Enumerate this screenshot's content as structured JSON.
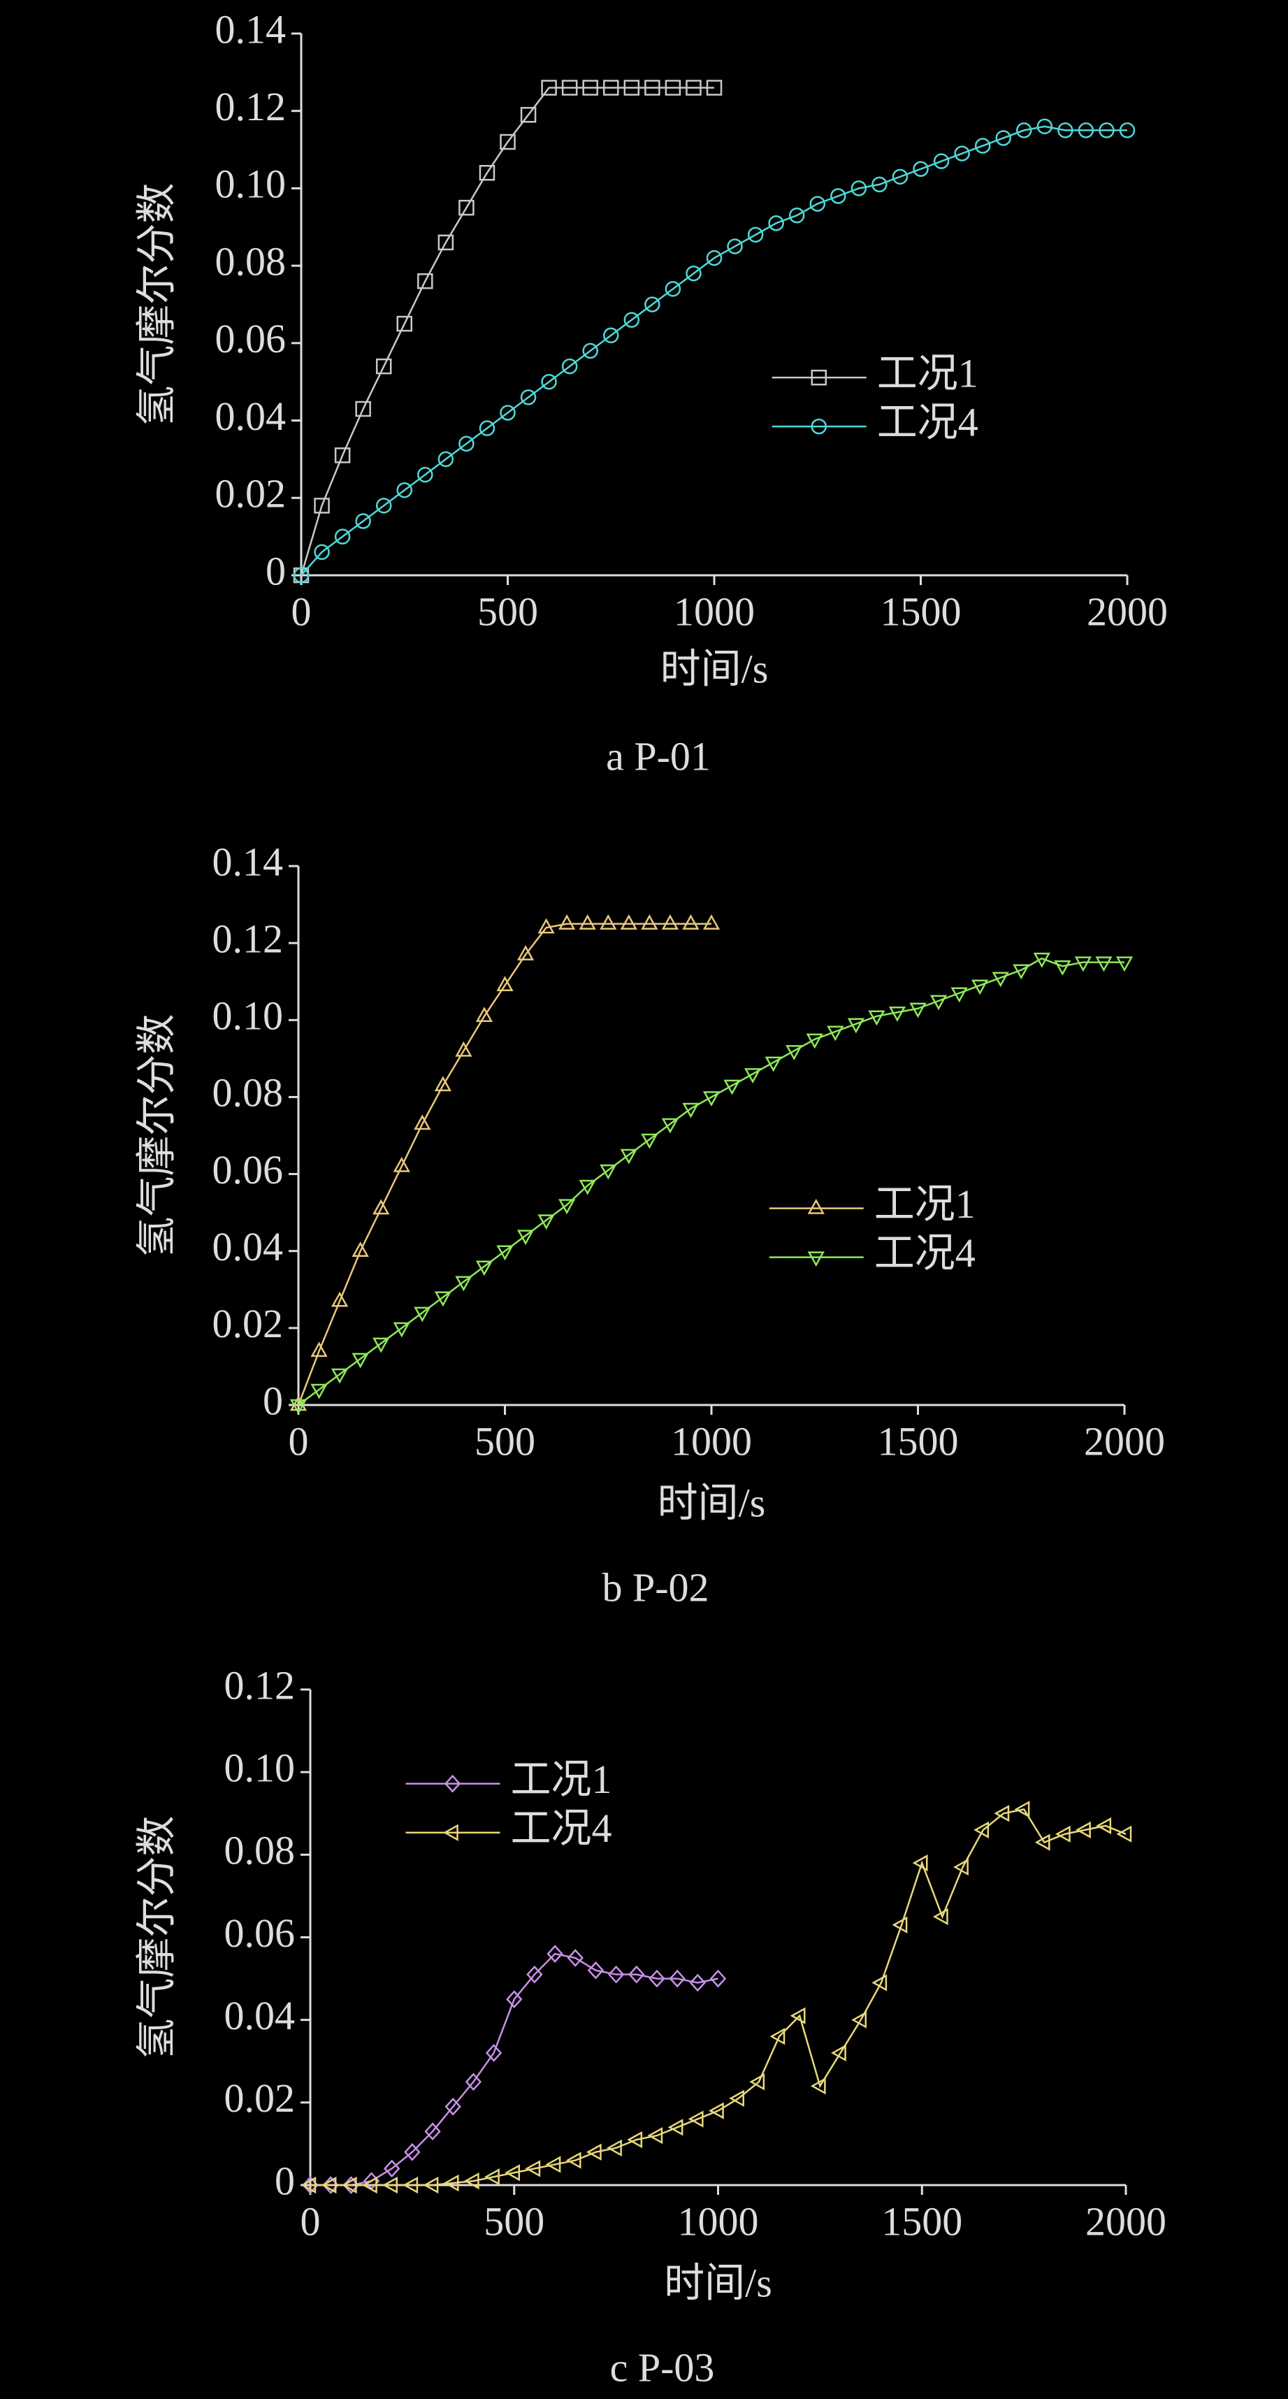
{
  "chart_data": [
    {
      "type": "line",
      "caption": "a  P-01",
      "xlabel": "时间/s",
      "ylabel": "氢气摩尔分数",
      "xlim": [
        0,
        2000
      ],
      "ylim": [
        0,
        0.14
      ],
      "xticks": [
        0,
        500,
        1000,
        1500,
        2000
      ],
      "yticks": [
        0,
        0.02,
        0.04,
        0.06,
        0.08,
        {
          "value": 0.1,
          "label": "0.10"
        },
        0.12,
        0.14
      ],
      "legend": "center right",
      "series": [
        {
          "name": "工况1",
          "color": "#c8c8c8",
          "marker": "square",
          "x": [
            0,
            50,
            100,
            150,
            200,
            250,
            300,
            350,
            400,
            450,
            500,
            550,
            600,
            650,
            700,
            750,
            800,
            850,
            900,
            950,
            1000
          ],
          "values": [
            0,
            0.018,
            0.031,
            0.043,
            0.054,
            0.065,
            0.076,
            0.086,
            0.095,
            0.104,
            0.112,
            0.119,
            0.126,
            0.126,
            0.126,
            0.126,
            0.126,
            0.126,
            0.126,
            0.126,
            0.126
          ]
        },
        {
          "name": "工况4",
          "color": "#4fd8d8",
          "marker": "circle",
          "x": [
            0,
            50,
            100,
            150,
            200,
            250,
            300,
            350,
            400,
            450,
            500,
            550,
            600,
            650,
            700,
            750,
            800,
            850,
            900,
            950,
            1000,
            1050,
            1100,
            1150,
            1200,
            1250,
            1300,
            1350,
            1400,
            1450,
            1500,
            1550,
            1600,
            1650,
            1700,
            1750,
            1800,
            1850,
            1900,
            1950,
            2000
          ],
          "values": [
            0,
            0.006,
            0.01,
            0.014,
            0.018,
            0.022,
            0.026,
            0.03,
            0.034,
            0.038,
            0.042,
            0.046,
            0.05,
            0.054,
            0.058,
            0.062,
            0.066,
            0.07,
            0.074,
            0.078,
            0.082,
            0.085,
            0.088,
            0.091,
            0.093,
            0.096,
            0.098,
            0.1,
            0.101,
            0.103,
            0.105,
            0.107,
            0.109,
            0.111,
            0.113,
            0.115,
            0.116,
            0.115,
            0.115,
            0.115,
            0.115
          ]
        }
      ]
    },
    {
      "type": "line",
      "caption": "b  P-02",
      "xlabel": "时间/s",
      "ylabel": "氢气摩尔分数",
      "xlim": [
        0,
        2000
      ],
      "ylim": [
        0,
        0.14
      ],
      "xticks": [
        0,
        500,
        1000,
        1500,
        2000
      ],
      "yticks": [
        0,
        0.02,
        0.04,
        0.06,
        0.08,
        {
          "value": 0.1,
          "label": "0.10"
        },
        0.12,
        0.14
      ],
      "legend": "center right",
      "series": [
        {
          "name": "工况1",
          "color": "#e8c87a",
          "marker": "triangle-up",
          "x": [
            0,
            50,
            100,
            150,
            200,
            250,
            300,
            350,
            400,
            450,
            500,
            550,
            600,
            650,
            700,
            750,
            800,
            850,
            900,
            950,
            1000
          ],
          "values": [
            0,
            0.014,
            0.027,
            0.04,
            0.051,
            0.062,
            0.073,
            0.083,
            0.092,
            0.101,
            0.109,
            0.117,
            0.124,
            0.125,
            0.125,
            0.125,
            0.125,
            0.125,
            0.125,
            0.125,
            0.125
          ]
        },
        {
          "name": "工况4",
          "color": "#8ee85a",
          "marker": "triangle-down",
          "x": [
            0,
            50,
            100,
            150,
            200,
            250,
            300,
            350,
            400,
            450,
            500,
            550,
            600,
            650,
            700,
            750,
            800,
            850,
            900,
            950,
            1000,
            1050,
            1100,
            1150,
            1200,
            1250,
            1300,
            1350,
            1400,
            1450,
            1500,
            1550,
            1600,
            1650,
            1700,
            1750,
            1800,
            1850,
            1900,
            1950,
            2000
          ],
          "values": [
            0,
            0.004,
            0.008,
            0.012,
            0.016,
            0.02,
            0.024,
            0.028,
            0.032,
            0.036,
            0.04,
            0.044,
            0.048,
            0.052,
            0.057,
            0.061,
            0.065,
            0.069,
            0.073,
            0.077,
            0.08,
            0.083,
            0.086,
            0.089,
            0.092,
            0.095,
            0.097,
            0.099,
            0.101,
            0.102,
            0.103,
            0.105,
            0.107,
            0.109,
            0.111,
            0.113,
            0.116,
            0.114,
            0.115,
            0.115,
            0.115
          ]
        }
      ]
    },
    {
      "type": "line",
      "caption": "c  P-03",
      "xlabel": "时间/s",
      "ylabel": "氢气摩尔分数",
      "xlim": [
        0,
        2000
      ],
      "ylim": [
        0,
        0.12
      ],
      "xticks": [
        0,
        500,
        1000,
        1500,
        2000
      ],
      "yticks": [
        0,
        0.02,
        0.04,
        0.06,
        0.08,
        {
          "value": 0.1,
          "label": "0.10"
        },
        0.12
      ],
      "legend": "upper left",
      "series": [
        {
          "name": "工况1",
          "color": "#c890e8",
          "marker": "diamond",
          "x": [
            0,
            50,
            100,
            150,
            200,
            250,
            300,
            350,
            400,
            450,
            500,
            550,
            600,
            650,
            700,
            750,
            800,
            850,
            900,
            950,
            1000
          ],
          "values": [
            0,
            0,
            0,
            0.001,
            0.004,
            0.008,
            0.013,
            0.019,
            0.025,
            0.032,
            0.045,
            0.051,
            0.056,
            0.055,
            0.052,
            0.051,
            0.051,
            0.05,
            0.05,
            0.049,
            0.05
          ]
        },
        {
          "name": "工况4",
          "color": "#e8d87a",
          "marker": "triangle-left",
          "x": [
            0,
            50,
            100,
            150,
            200,
            250,
            300,
            350,
            400,
            450,
            500,
            550,
            600,
            650,
            700,
            750,
            800,
            850,
            900,
            950,
            1000,
            1050,
            1100,
            1150,
            1200,
            1250,
            1300,
            1350,
            1400,
            1450,
            1500,
            1550,
            1600,
            1650,
            1700,
            1750,
            1800,
            1850,
            1900,
            1950,
            2000
          ],
          "values": [
            0,
            0,
            0,
            0,
            0,
            0,
            0,
            0.0005,
            0.001,
            0.002,
            0.003,
            0.004,
            0.005,
            0.006,
            0.008,
            0.009,
            0.011,
            0.012,
            0.014,
            0.016,
            0.018,
            0.021,
            0.025,
            0.036,
            0.041,
            0.024,
            0.032,
            0.04,
            0.049,
            0.063,
            0.078,
            0.065,
            0.077,
            0.086,
            0.09,
            0.091,
            0.083,
            0.085,
            0.086,
            0.087,
            0.085
          ]
        }
      ]
    }
  ]
}
